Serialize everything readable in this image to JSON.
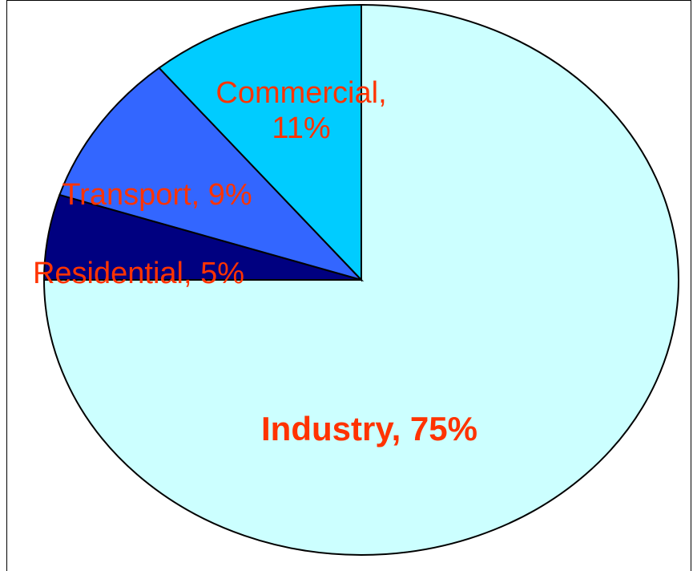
{
  "chart_data": {
    "type": "pie",
    "start_angle_deg": 90,
    "direction": "clockwise",
    "slices": [
      {
        "label": "Industry",
        "value": 75,
        "display_label": [
          "Industry, 75%"
        ],
        "color": "#ccffff",
        "bold": true
      },
      {
        "label": "Residential",
        "value": 5,
        "display_label": [
          "Residential, 5%"
        ],
        "color": "#000080",
        "bold": false
      },
      {
        "label": "Transport",
        "value": 9,
        "display_label": [
          "Transport, 9%"
        ],
        "color": "#3366ff",
        "bold": false
      },
      {
        "label": "Commercial",
        "value": 11,
        "display_label": [
          "Commercial,",
          "11%"
        ],
        "color": "#00ccff",
        "bold": false
      }
    ],
    "label_color": "#ff3300",
    "edge_color": "#000000",
    "legend": "none",
    "title": ""
  }
}
